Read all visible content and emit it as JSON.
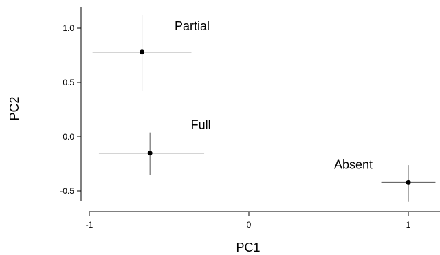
{
  "chart_data": {
    "type": "scatter",
    "title": "",
    "xlabel": "PC1",
    "ylabel": "PC2",
    "xlim": [
      -1.05,
      1.18
    ],
    "ylim": [
      -0.62,
      1.18
    ],
    "xticks": [
      -1,
      0,
      1
    ],
    "xtick_labels": [
      "-1",
      "0",
      "1"
    ],
    "yticks": [
      1.0,
      0.5,
      0.0,
      -0.5
    ],
    "ytick_labels": [
      "1.0",
      "0.5",
      "0.0",
      "-0.5"
    ],
    "grid": false,
    "legend": "none",
    "points": [
      {
        "label": "Partial",
        "x": -0.67,
        "y": 0.78,
        "x_low": -0.98,
        "x_high": -0.36,
        "y_low": 0.42,
        "y_high": 1.12
      },
      {
        "label": "Full",
        "x": -0.62,
        "y": -0.15,
        "x_low": -0.94,
        "x_high": -0.28,
        "y_low": -0.35,
        "y_high": 0.04
      },
      {
        "label": "Absent",
        "x": 1.0,
        "y": -0.42,
        "x_low": 0.83,
        "x_high": 1.17,
        "y_low": -0.6,
        "y_high": -0.26
      }
    ],
    "colors": {
      "point": "#000000",
      "errorbar": "#555555",
      "axis": "#000000"
    }
  }
}
